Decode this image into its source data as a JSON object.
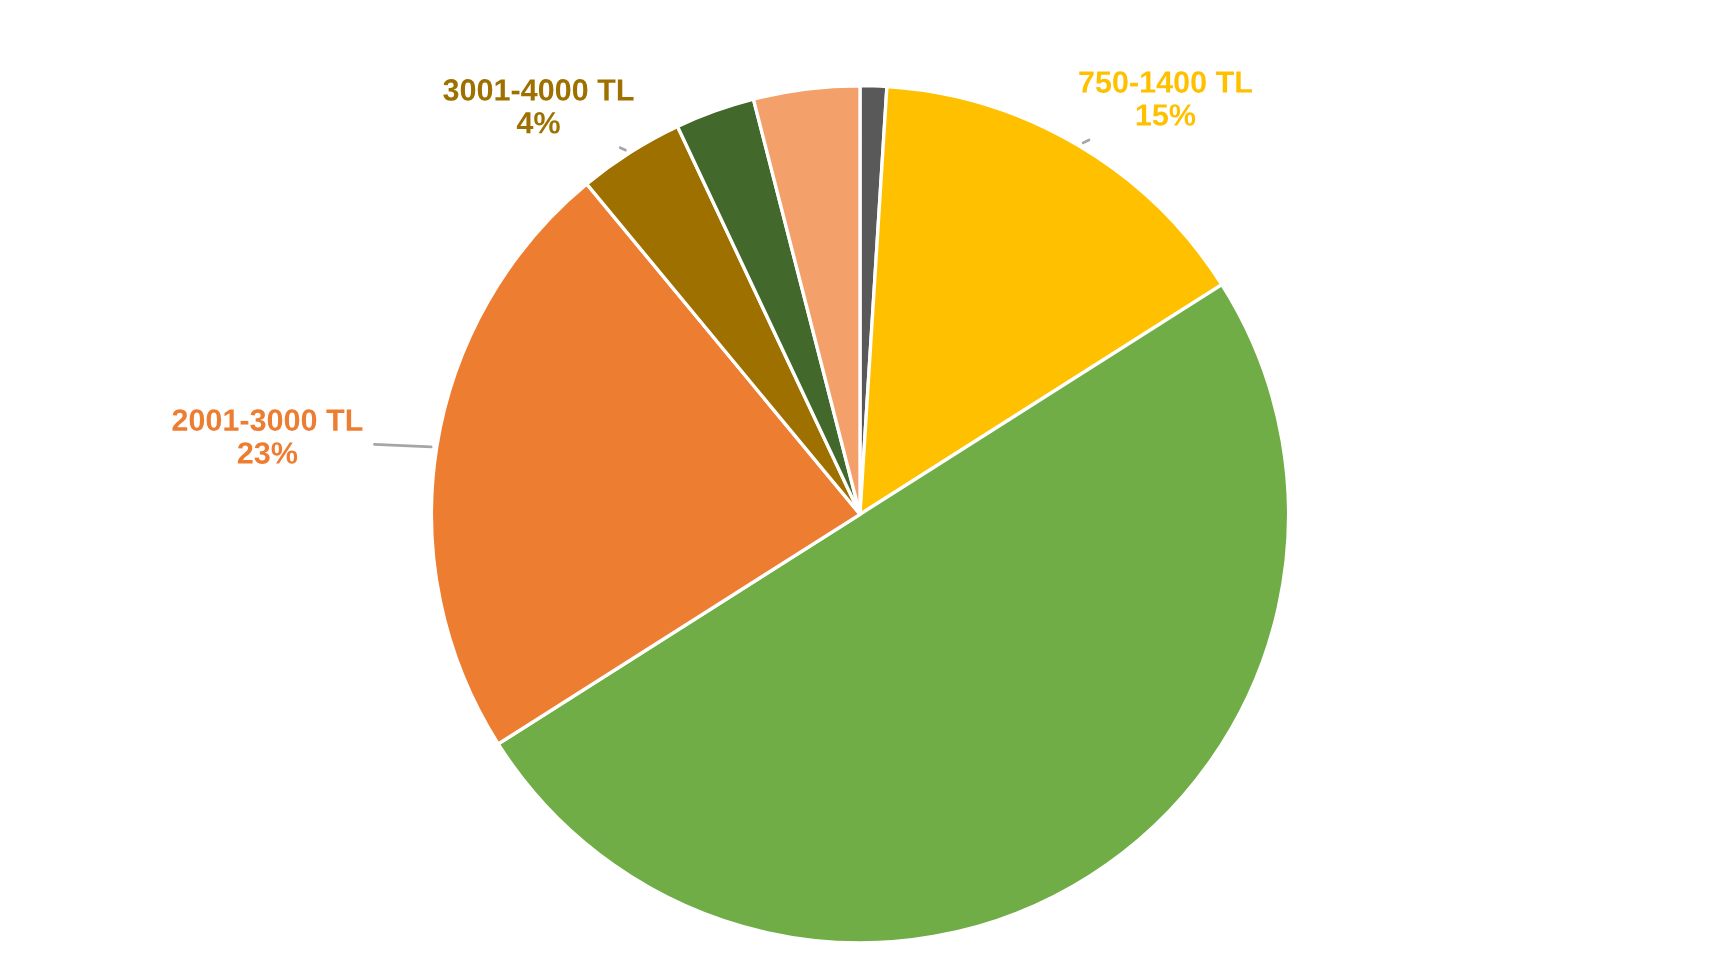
{
  "chart_data": {
    "type": "pie",
    "categories": [
      null,
      "750-1400 TL",
      null,
      "2001-3000 TL",
      "3001-4000 TL",
      null,
      null
    ],
    "values": [
      1,
      15,
      50,
      23,
      4,
      3,
      4
    ],
    "colors": [
      "#595959",
      "#ffc000",
      "#70ad47",
      "#ed7d31",
      "#9e7000",
      "#43682b",
      "#f4a06b"
    ],
    "value_labels": [
      null,
      "15%",
      null,
      "23%",
      "4%",
      null,
      null
    ]
  }
}
